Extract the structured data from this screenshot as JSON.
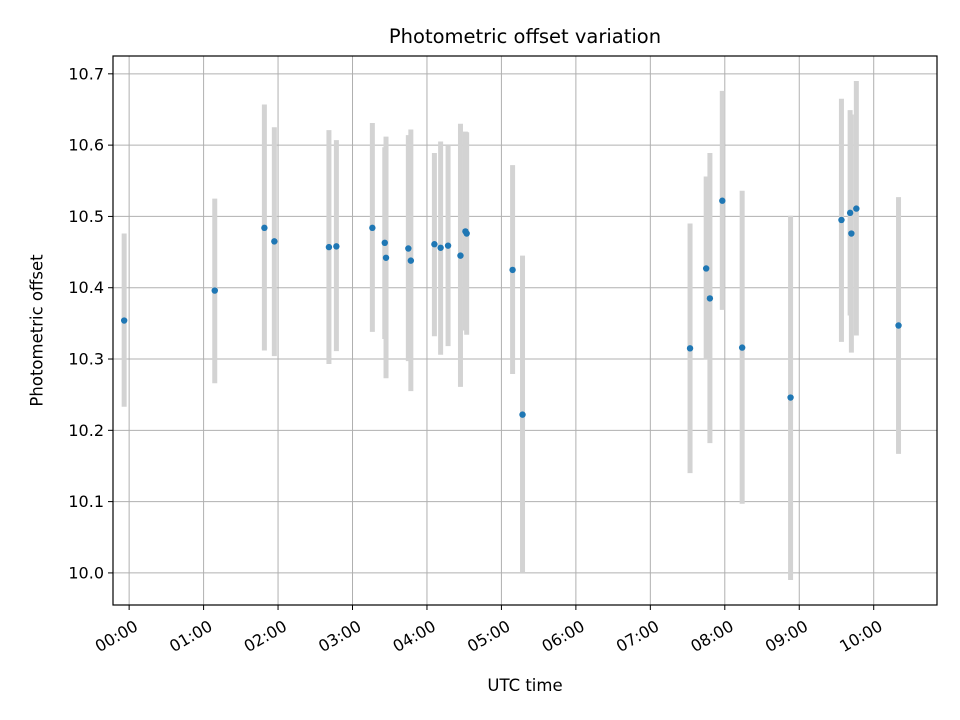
{
  "chart_data": {
    "type": "scatter",
    "title": "Photometric offset variation",
    "xlabel": "UTC time",
    "ylabel": "Photometric offset",
    "x_unit": "UTC time (HH:MM)",
    "xlim": [
      "-00:13",
      "10:51"
    ],
    "ylim": [
      9.955,
      10.725
    ],
    "x_ticks": [
      "00:00",
      "01:00",
      "02:00",
      "03:00",
      "04:00",
      "05:00",
      "06:00",
      "07:00",
      "08:00",
      "09:00",
      "10:00"
    ],
    "y_ticks": [
      10.0,
      10.1,
      10.2,
      10.3,
      10.4,
      10.5,
      10.6,
      10.7
    ],
    "grid": true,
    "marker_color": "#1f77b4",
    "errorbar_color": "#d3d3d3",
    "points": [
      {
        "x": "-00:04",
        "y": 10.354,
        "yerr": [
          10.233,
          10.476
        ]
      },
      {
        "x": "01:09",
        "y": 10.396,
        "yerr": [
          10.266,
          10.525
        ]
      },
      {
        "x": "01:49",
        "y": 10.484,
        "yerr": [
          10.312,
          10.657
        ]
      },
      {
        "x": "01:57",
        "y": 10.465,
        "yerr": [
          10.304,
          10.625
        ]
      },
      {
        "x": "02:41",
        "y": 10.457,
        "yerr": [
          10.293,
          10.621
        ]
      },
      {
        "x": "02:47",
        "y": 10.458,
        "yerr": [
          10.311,
          10.607
        ]
      },
      {
        "x": "03:16",
        "y": 10.484,
        "yerr": [
          10.338,
          10.631
        ]
      },
      {
        "x": "03:26",
        "y": 10.463,
        "yerr": [
          10.328,
          10.597
        ]
      },
      {
        "x": "03:27",
        "y": 10.442,
        "yerr": [
          10.273,
          10.612
        ]
      },
      {
        "x": "03:45",
        "y": 10.455,
        "yerr": [
          10.297,
          10.614
        ]
      },
      {
        "x": "03:47",
        "y": 10.438,
        "yerr": [
          10.255,
          10.622
        ]
      },
      {
        "x": "04:06",
        "y": 10.461,
        "yerr": [
          10.332,
          10.589
        ]
      },
      {
        "x": "04:11",
        "y": 10.456,
        "yerr": [
          10.306,
          10.605
        ]
      },
      {
        "x": "04:17",
        "y": 10.459,
        "yerr": [
          10.318,
          10.6
        ]
      },
      {
        "x": "04:27",
        "y": 10.445,
        "yerr": [
          10.261,
          10.63
        ]
      },
      {
        "x": "04:31",
        "y": 10.479,
        "yerr": [
          10.34,
          10.619
        ]
      },
      {
        "x": "04:32",
        "y": 10.476,
        "yerr": [
          10.334,
          10.618
        ]
      },
      {
        "x": "05:09",
        "y": 10.425,
        "yerr": [
          10.279,
          10.572
        ]
      },
      {
        "x": "05:17",
        "y": 10.222,
        "yerr": [
          10.0,
          10.445
        ]
      },
      {
        "x": "07:32",
        "y": 10.315,
        "yerr": [
          10.14,
          10.49
        ]
      },
      {
        "x": "07:45",
        "y": 10.427,
        "yerr": [
          10.299,
          10.556
        ]
      },
      {
        "x": "07:48",
        "y": 10.385,
        "yerr": [
          10.182,
          10.589
        ]
      },
      {
        "x": "07:58",
        "y": 10.522,
        "yerr": [
          10.369,
          10.676
        ]
      },
      {
        "x": "08:14",
        "y": 10.316,
        "yerr": [
          10.097,
          10.536
        ]
      },
      {
        "x": "08:53",
        "y": 10.246,
        "yerr": [
          9.99,
          10.501
        ]
      },
      {
        "x": "09:34",
        "y": 10.495,
        "yerr": [
          10.324,
          10.665
        ]
      },
      {
        "x": "09:41",
        "y": 10.505,
        "yerr": [
          10.361,
          10.649
        ]
      },
      {
        "x": "09:42",
        "y": 10.476,
        "yerr": [
          10.309,
          10.643
        ]
      },
      {
        "x": "09:46",
        "y": 10.511,
        "yerr": [
          10.333,
          10.69
        ]
      },
      {
        "x": "10:20",
        "y": 10.347,
        "yerr": [
          10.167,
          10.527
        ]
      }
    ]
  }
}
